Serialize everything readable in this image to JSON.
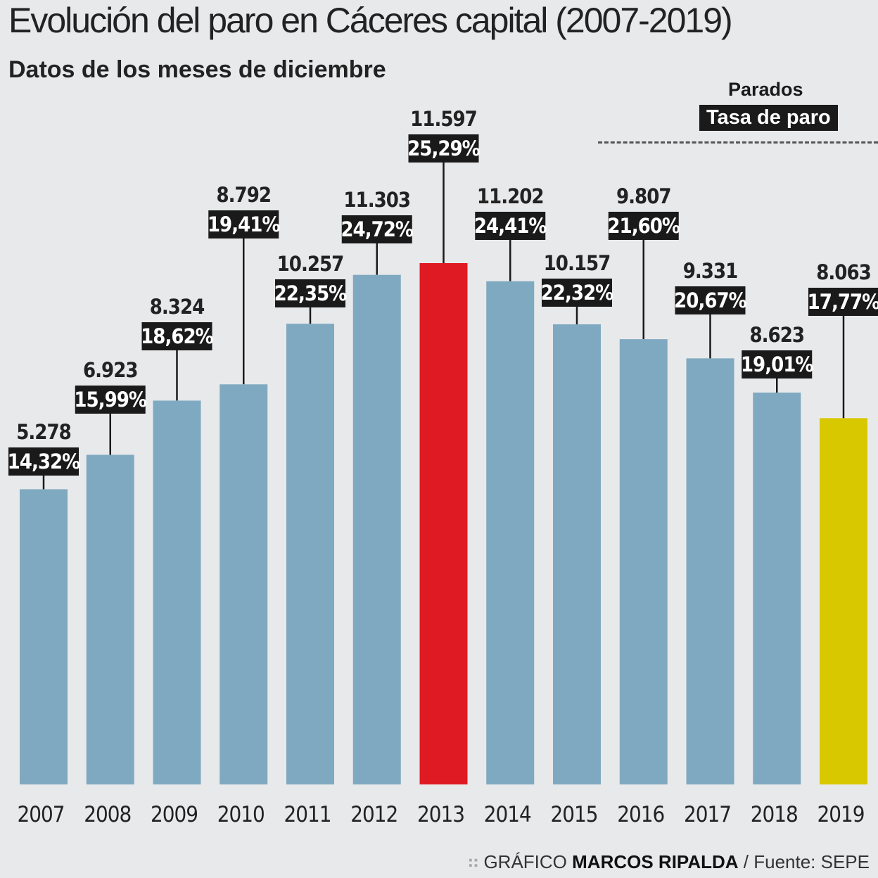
{
  "chart_data": {
    "type": "bar",
    "title": "Evolución del paro en Cáceres capital (2007-2019)",
    "subtitle": "Datos de los meses de diciembre",
    "legend": {
      "parados": "Parados",
      "tasa": "Tasa de paro",
      "placement": "top-right"
    },
    "categories": [
      "2007",
      "2008",
      "2009",
      "2010",
      "2011",
      "2012",
      "2013",
      "2014",
      "2015",
      "2016",
      "2017",
      "2018",
      "2019"
    ],
    "series": [
      {
        "name": "Tasa de paro",
        "values": [
          14.32,
          15.99,
          18.62,
          19.41,
          22.35,
          24.72,
          25.29,
          24.41,
          22.32,
          21.6,
          20.67,
          19.01,
          17.77
        ],
        "labels": [
          "14,32%",
          "15,99%",
          "18,62%",
          "19,41%",
          "22,35%",
          "24,72%",
          "25,29%",
          "24,41%",
          "22,32%",
          "21,60%",
          "20,67%",
          "19,01%",
          "17,77%"
        ]
      },
      {
        "name": "Parados",
        "values": [
          5278,
          6923,
          8324,
          8792,
          10257,
          11303,
          11597,
          11202,
          10157,
          9807,
          9331,
          8623,
          8063
        ],
        "labels": [
          "5.278",
          "6.923",
          "8.324",
          "8.792",
          "10.257",
          "11.303",
          "11.597",
          "11.202",
          "10.157",
          "9.807",
          "9.331",
          "8.623",
          "8.063"
        ]
      }
    ],
    "ylim": [
      0,
      38
    ],
    "grid": false,
    "colors": {
      "default": "#7fa9c0",
      "2013": "#e01a22",
      "2019": "#d8c800",
      "label_bg": "#1a1a1a",
      "background": "#e8e9eb"
    }
  },
  "footer": {
    "prefix": "GRÁFICO",
    "author": "MARCOS RIPALDA",
    "source": "/ Fuente: SEPE"
  }
}
